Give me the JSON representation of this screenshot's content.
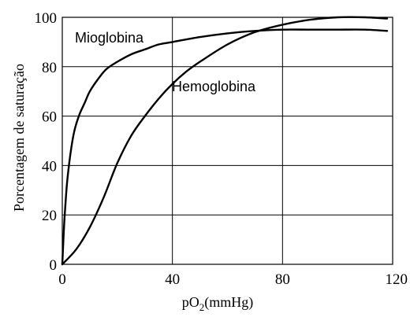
{
  "chart_data": {
    "type": "line",
    "xlabel_main": "pO",
    "xlabel_sub": "2",
    "xlabel_rest": "(mmHg)",
    "ylabel": "Porcentagem de saturação",
    "xlim": [
      0,
      120
    ],
    "ylim": [
      0,
      100
    ],
    "xticks": [
      0,
      40,
      80,
      120
    ],
    "yticks": [
      0,
      20,
      40,
      60,
      80,
      100
    ],
    "grid": true,
    "series": [
      {
        "name": "Mioglobina",
        "x": [
          0,
          0.5,
          1,
          2,
          4,
          6,
          8,
          10,
          13,
          16,
          20,
          25,
          30,
          35,
          40,
          50,
          60,
          70,
          80,
          90,
          100,
          110,
          118
        ],
        "y": [
          0,
          12,
          22,
          36,
          52,
          60,
          65,
          70,
          75,
          79,
          82,
          85,
          87,
          89,
          90,
          92,
          93.5,
          94.5,
          95,
          95,
          95,
          95,
          94.5
        ]
      },
      {
        "name": "Hemoglobina",
        "x": [
          0,
          5,
          10,
          15,
          20,
          25,
          30,
          35,
          40,
          45,
          50,
          60,
          70,
          80,
          90,
          100,
          110,
          118
        ],
        "y": [
          0,
          6,
          15,
          27,
          41,
          52,
          60,
          67,
          73,
          78,
          82,
          89,
          94,
          97,
          99,
          100,
          100,
          99.5
        ]
      }
    ]
  }
}
